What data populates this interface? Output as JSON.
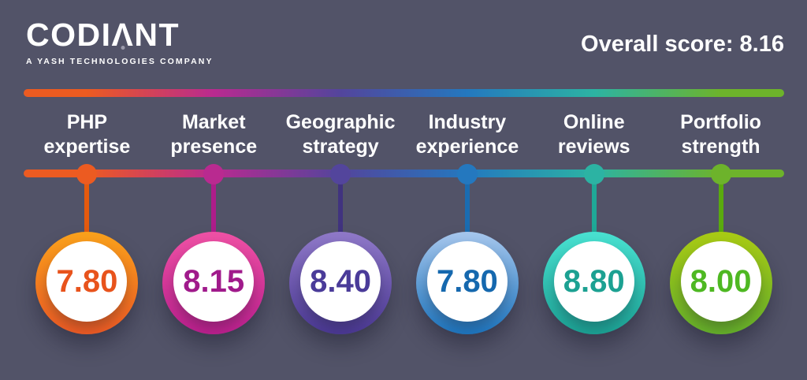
{
  "brand": {
    "logo_pre": "CODI",
    "logo_lambda": "Λ",
    "logo_post": "NT",
    "tagline": "A YASH TECHNOLOGIES COMPANY"
  },
  "header": {
    "overall_score": "Overall score: 8.16"
  },
  "chart_data": {
    "type": "bar",
    "title": "Overall score: 8.16",
    "overall_score": 8.16,
    "categories": [
      "PHP expertise",
      "Market presence",
      "Geographic strategy",
      "Industry experience",
      "Online reviews",
      "Portfolio strength"
    ],
    "values": [
      7.8,
      8.15,
      8.4,
      7.8,
      8.8,
      8.0
    ],
    "value_labels": [
      "7.80",
      "8.15",
      "8.40",
      "7.80",
      "8.80",
      "8.00"
    ],
    "value_range": [
      0,
      10
    ],
    "legend": false,
    "layout": "horizontal gradient timeline with hanging circular score medallions",
    "series_colors": [
      "#ec5b21",
      "#b92a90",
      "#53459c",
      "#2478bf",
      "#2cb3a3",
      "#6db32b"
    ]
  },
  "items": [
    {
      "label_line1": "PHP",
      "label_line2": "expertise",
      "value": "7.80",
      "color": "#ec5b21",
      "stem_color": "#e55a0e",
      "ring_top": "#f9a11b",
      "ring_bottom": "#ee5a24",
      "value_color": "#e8531c"
    },
    {
      "label_line1": "Market",
      "label_line2": "presence",
      "value": "8.15",
      "color": "#b92a90",
      "stem_color": "#ae1d8a",
      "ring_top": "#ee51a4",
      "ring_bottom": "#bc1f8e",
      "value_color": "#a01a8b"
    },
    {
      "label_line1": "Geographic",
      "label_line2": "strategy",
      "value": "8.40",
      "color": "#53459c",
      "stem_color": "#40337f",
      "ring_top": "#8f79c8",
      "ring_bottom": "#4b3894",
      "value_color": "#4a3b99"
    },
    {
      "label_line1": "Industry",
      "label_line2": "experience",
      "value": "7.80",
      "color": "#2478bf",
      "stem_color": "#1a6cb1",
      "ring_top": "#a6c6ec",
      "ring_bottom": "#1d76c0",
      "value_color": "#1568ae"
    },
    {
      "label_line1": "Online",
      "label_line2": "reviews",
      "value": "8.80",
      "color": "#2cb3a3",
      "stem_color": "#1fa897",
      "ring_top": "#49e1d1",
      "ring_bottom": "#1ba294",
      "value_color": "#1ca192"
    },
    {
      "label_line1": "Portfolio",
      "label_line2": "strength",
      "value": "8.00",
      "color": "#6db32b",
      "stem_color": "#5aaa0e",
      "ring_top": "#a9ca14",
      "ring_bottom": "#65b02a",
      "value_color": "#4eb822"
    }
  ],
  "theme": {
    "background": "#525368",
    "text_primary": "#ffffff",
    "logo_dot_color": "#9a9aab"
  }
}
